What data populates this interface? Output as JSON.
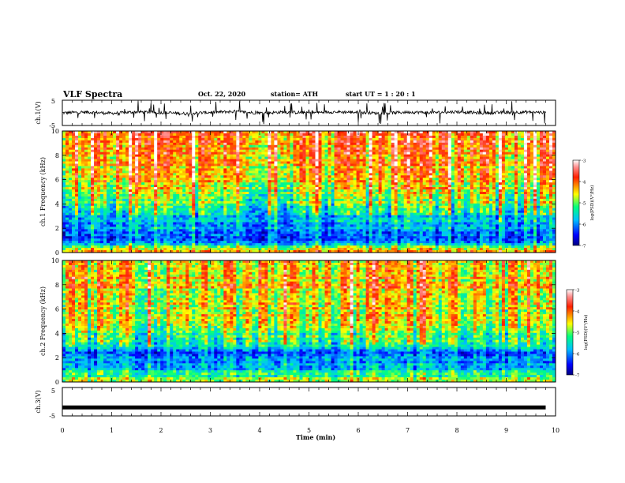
{
  "header": {
    "title": "VLF Spectra",
    "date": "Oct. 22, 2020",
    "station": "station= ATH",
    "start": "start  UT =   1 : 20 : 1"
  },
  "chart_data": [
    {
      "type": "line",
      "name": "ch1-waveform",
      "ylabel": "ch.1(V)",
      "ylim": [
        -5,
        5
      ],
      "yticks": [
        "5",
        "-5"
      ],
      "x": [
        0.0,
        0.5,
        1.0,
        1.5,
        2.0,
        2.5,
        3.0,
        3.5,
        4.0,
        4.5,
        5.0,
        5.5,
        6.0,
        6.5,
        7.0,
        7.5,
        8.0,
        8.5,
        9.0,
        9.5,
        9.8
      ],
      "values": [
        0.0,
        0.3,
        -0.2,
        0.4,
        0.1,
        -0.3,
        0.2,
        0.5,
        -0.1,
        0.3,
        0.0,
        0.4,
        0.2,
        -0.2,
        0.3,
        0.1,
        0.4,
        -0.1,
        0.2,
        0.3,
        0.1
      ],
      "envelope": [
        -4.5,
        4.5
      ]
    },
    {
      "type": "heatmap",
      "name": "ch1-spectrogram",
      "ylabel": "ch.1 Frequency  (kHz)",
      "ylim": [
        0,
        10
      ],
      "yticks": [
        "0",
        "2",
        "4",
        "6",
        "8",
        "10"
      ],
      "frequency_profile_log_psd": [
        {
          "freq_khz": 0.3,
          "log_psd": -4.5
        },
        {
          "freq_khz": 1.0,
          "log_psd": -6.3
        },
        {
          "freq_khz": 2.0,
          "log_psd": -6.0
        },
        {
          "freq_khz": 3.0,
          "log_psd": -5.8
        },
        {
          "freq_khz": 4.0,
          "log_psd": -5.2
        },
        {
          "freq_khz": 5.0,
          "log_psd": -4.8
        },
        {
          "freq_khz": 6.0,
          "log_psd": -4.6
        },
        {
          "freq_khz": 7.0,
          "log_psd": -4.4
        },
        {
          "freq_khz": 8.0,
          "log_psd": -4.2
        },
        {
          "freq_khz": 9.0,
          "log_psd": -4.1
        },
        {
          "freq_khz": 10.0,
          "log_psd": -4.0
        }
      ],
      "colorbar": {
        "label": "log(PSD)(V²/Hz)",
        "range": [
          -7,
          -3
        ],
        "ticks": [
          "-3",
          "-4",
          "-5",
          "-6",
          "-7"
        ]
      }
    },
    {
      "type": "heatmap",
      "name": "ch2-spectrogram",
      "ylabel": "ch.2 Frequency  (kHz)",
      "ylim": [
        0,
        10
      ],
      "yticks": [
        "0",
        "2",
        "4",
        "6",
        "8",
        "10"
      ],
      "frequency_profile_log_psd": [
        {
          "freq_khz": 0.3,
          "log_psd": -5.0
        },
        {
          "freq_khz": 1.0,
          "log_psd": -5.7
        },
        {
          "freq_khz": 2.0,
          "log_psd": -6.1
        },
        {
          "freq_khz": 2.5,
          "log_psd": -6.3
        },
        {
          "freq_khz": 3.0,
          "log_psd": -5.5
        },
        {
          "freq_khz": 4.0,
          "log_psd": -5.0
        },
        {
          "freq_khz": 5.0,
          "log_psd": -4.7
        },
        {
          "freq_khz": 6.0,
          "log_psd": -4.6
        },
        {
          "freq_khz": 7.0,
          "log_psd": -4.5
        },
        {
          "freq_khz": 8.0,
          "log_psd": -4.4
        },
        {
          "freq_khz": 9.0,
          "log_psd": -4.4
        },
        {
          "freq_khz": 10.0,
          "log_psd": -4.3
        }
      ],
      "colorbar": {
        "label": "log(PSD)(V²/Hz)",
        "range": [
          -7,
          -3
        ],
        "ticks": [
          "-3",
          "-4",
          "-5",
          "-6",
          "-7"
        ]
      }
    },
    {
      "type": "line",
      "name": "ch3-waveform",
      "ylabel": "ch.3(V)",
      "ylim": [
        -5,
        5
      ],
      "yticks": [
        "5",
        "-5"
      ],
      "x": [
        0.0,
        9.8
      ],
      "values": [
        -2.0,
        -2.0
      ]
    }
  ],
  "x_axis": {
    "label": "Time  (min)",
    "range": [
      0,
      10
    ],
    "ticks": [
      "0",
      "1",
      "2",
      "3",
      "4",
      "5",
      "6",
      "7",
      "8",
      "9",
      "10"
    ]
  }
}
